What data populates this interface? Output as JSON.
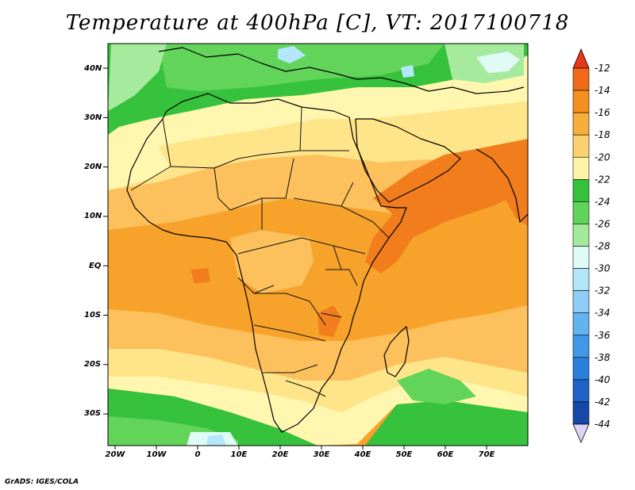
{
  "title": "Temperature at 400hPa [C], VT: 2017100718",
  "credit": "GrADS: IGES/COLA",
  "colors": {
    "c_22_20": "#fff7b0",
    "c_20_18": "#ffe58a",
    "c_18_16": "#fcc15c",
    "c_16_14": "#f7a22a",
    "c_14_12": "#f17d1c",
    "c_24_22": "#36c23c",
    "c_26_24": "#62d45a",
    "c_28_26": "#a6eb9d",
    "c_30_28": "#e0fbf6",
    "c_32_30": "#b4e7fb",
    "c_34_32": "#8ecdf7"
  },
  "map": {
    "lat_labels": [
      "40N",
      "30N",
      "20N",
      "10N",
      "EQ",
      "10S",
      "20S",
      "30S"
    ],
    "lon_labels": [
      "20W",
      "10W",
      "0",
      "10E",
      "20E",
      "30E",
      "40E",
      "50E",
      "60E",
      "70E"
    ]
  },
  "colorbar": {
    "labels": [
      "-12",
      "-14",
      "-16",
      "-18",
      "-20",
      "-22",
      "-24",
      "-26",
      "-28",
      "-30",
      "-32",
      "-34",
      "-36",
      "-38",
      "-40",
      "-42",
      "-44"
    ],
    "colors": [
      "#f06a18",
      "#f4901e",
      "#f8ae3e",
      "#fcd270",
      "#fff3a8",
      "#34c23a",
      "#5fd35a",
      "#a3eb9b",
      "#dffbf6",
      "#b3e6fb",
      "#8ecdf7",
      "#63b3f0",
      "#3f98e8",
      "#2a7fdc",
      "#1f63c8",
      "#1648a8",
      "#0c2a80"
    ],
    "top_color": "#e8381a",
    "bottom_color": "#dcd4f4"
  }
}
